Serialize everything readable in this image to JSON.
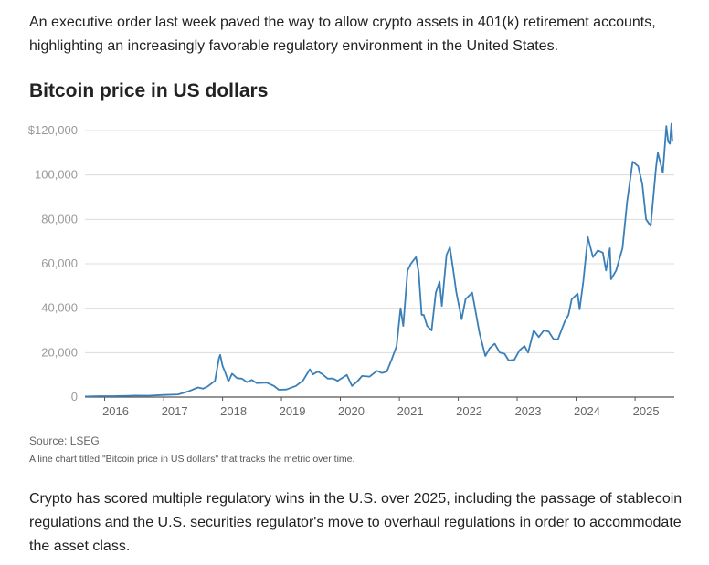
{
  "article": {
    "intro": "An executive order last week paved the way to allow crypto assets in 401(k) retirement accounts, highlighting an increasingly favorable regulatory environment in the United States.",
    "outro": "Crypto has scored multiple regulatory wins in the U.S. over 2025, including the passage of stablecoin regulations and the U.S. securities regulator's move to overhaul regulations in order to accommodate the asset class."
  },
  "chart_meta": {
    "source": "Source: LSEG",
    "description": "A line chart titled \"Bitcoin price in US dollars\" that tracks the metric over time.",
    "line_color": "#3a7fb8"
  },
  "chart_data": {
    "type": "line",
    "title": "Bitcoin price in US dollars",
    "xlabel": "",
    "ylabel": "",
    "ylim": [
      0,
      120000
    ],
    "xlim": [
      "2015-09-01",
      "2025-09-01"
    ],
    "grid": true,
    "yticks": [
      0,
      20000,
      40000,
      60000,
      80000,
      100000,
      120000
    ],
    "ytick_labels": [
      "0",
      "20,000",
      "40,000",
      "60,000",
      "80,000",
      "100,000",
      "$120,000"
    ],
    "xtick_labels": [
      "2016",
      "2017",
      "2018",
      "2019",
      "2020",
      "2021",
      "2022",
      "2023",
      "2024",
      "2025"
    ],
    "series": [
      {
        "x": [
          "2015-09-01",
          "2015-12-01",
          "2016-03-01",
          "2016-06-01",
          "2016-07-01",
          "2016-10-01",
          "2017-01-01",
          "2017-04-01",
          "2017-06-01",
          "2017-08-01",
          "2017-09-01",
          "2017-10-01",
          "2017-11-15",
          "2017-12-10",
          "2017-12-17",
          "2018-01-01",
          "2018-01-15",
          "2018-02-06",
          "2018-03-01",
          "2018-04-01",
          "2018-05-01",
          "2018-06-01",
          "2018-07-01",
          "2018-08-01",
          "2018-10-01",
          "2018-11-15",
          "2018-12-15",
          "2019-02-01",
          "2019-04-01",
          "2019-05-15",
          "2019-06-26",
          "2019-07-15",
          "2019-08-15",
          "2019-09-15",
          "2019-10-15",
          "2019-11-15",
          "2019-12-15",
          "2020-02-10",
          "2020-03-13",
          "2020-04-15",
          "2020-05-15",
          "2020-07-01",
          "2020-08-15",
          "2020-09-15",
          "2020-10-15",
          "2020-11-15",
          "2020-12-15",
          "2021-01-08",
          "2021-01-25",
          "2021-02-21",
          "2021-03-13",
          "2021-04-14",
          "2021-05-01",
          "2021-05-19",
          "2021-06-01",
          "2021-06-22",
          "2021-07-20",
          "2021-08-15",
          "2021-09-07",
          "2021-09-21",
          "2021-10-20",
          "2021-11-10",
          "2021-12-01",
          "2021-12-20",
          "2022-01-22",
          "2022-02-15",
          "2022-03-28",
          "2022-04-15",
          "2022-05-12",
          "2022-06-18",
          "2022-07-15",
          "2022-08-15",
          "2022-09-15",
          "2022-10-15",
          "2022-11-09",
          "2022-12-15",
          "2023-01-15",
          "2023-02-15",
          "2023-03-10",
          "2023-04-14",
          "2023-05-15",
          "2023-06-15",
          "2023-07-15",
          "2023-08-15",
          "2023-09-11",
          "2023-10-23",
          "2023-11-15",
          "2023-12-05",
          "2024-01-11",
          "2024-01-23",
          "2024-02-15",
          "2024-03-14",
          "2024-04-15",
          "2024-05-15",
          "2024-06-15",
          "2024-07-05",
          "2024-07-29",
          "2024-08-05",
          "2024-09-06",
          "2024-10-15",
          "2024-11-13",
          "2024-12-17",
          "2025-01-20",
          "2025-02-15",
          "2025-03-10",
          "2025-04-08",
          "2025-05-10",
          "2025-05-22",
          "2025-06-22",
          "2025-07-14",
          "2025-07-25",
          "2025-08-05",
          "2025-08-14",
          "2025-08-20"
        ],
        "values": [
          230,
          430,
          410,
          580,
          650,
          620,
          950,
          1200,
          2500,
          4300,
          3800,
          4800,
          7300,
          17500,
          19000,
          14000,
          11500,
          7000,
          10500,
          8500,
          8300,
          6700,
          7700,
          6300,
          6500,
          5000,
          3300,
          3400,
          5000,
          7500,
          12500,
          10200,
          11500,
          10100,
          8300,
          8400,
          7300,
          10000,
          5000,
          7000,
          9500,
          9200,
          11800,
          10800,
          11500,
          17000,
          23000,
          40000,
          32000,
          57000,
          60000,
          63000,
          56000,
          37000,
          37000,
          32000,
          30000,
          47000,
          52000,
          41000,
          64000,
          67500,
          57000,
          47000,
          35000,
          44000,
          47000,
          40000,
          29000,
          18500,
          22000,
          24000,
          20000,
          19500,
          16500,
          16800,
          21000,
          23000,
          20000,
          30000,
          27000,
          30000,
          29500,
          26000,
          26000,
          34000,
          37000,
          44000,
          46500,
          39500,
          52000,
          72000,
          63000,
          66000,
          65000,
          57000,
          67000,
          53000,
          57000,
          67000,
          88000,
          106000,
          104000,
          96000,
          80000,
          77000,
          103000,
          110000,
          101000,
          122000,
          115000,
          114000,
          123000,
          115000
        ]
      }
    ]
  }
}
